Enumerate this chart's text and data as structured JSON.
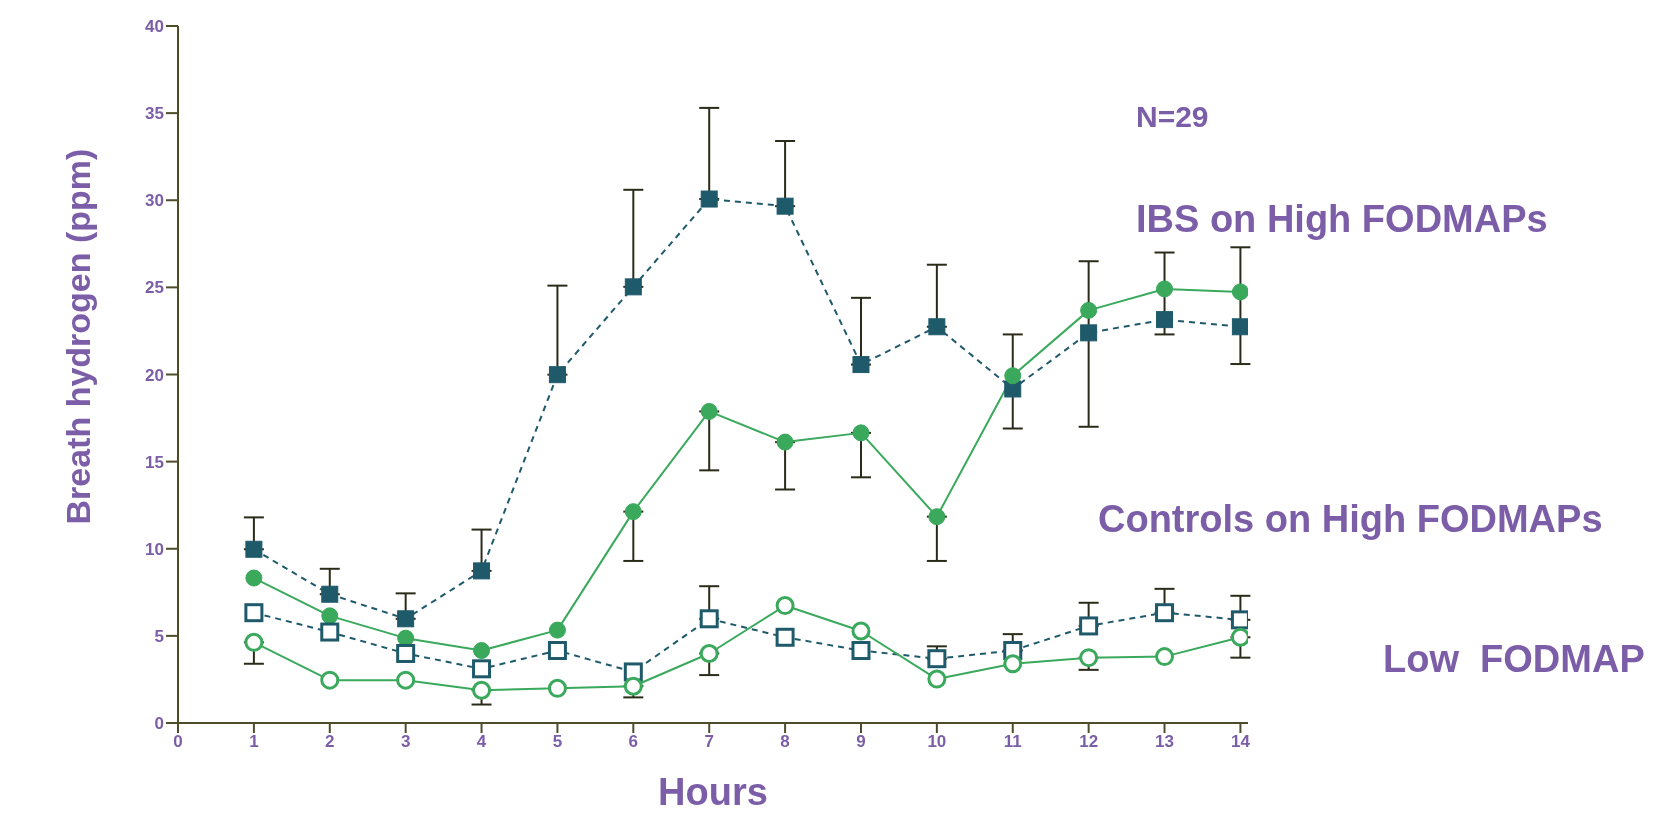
{
  "chart_data": {
    "type": "line",
    "xlabel": "Hours",
    "ylabel": "Breath hydrogen (ppm)",
    "x": [
      1,
      2,
      3,
      4,
      5,
      6,
      7,
      8,
      9,
      10,
      11,
      12,
      13,
      14
    ],
    "xlim": [
      0,
      14.1
    ],
    "xticks": [
      0,
      1,
      2,
      3,
      4,
      5,
      6,
      7,
      8,
      9,
      10,
      11,
      12,
      13,
      14
    ],
    "ylim": [
      0,
      40
    ],
    "yticks": [
      0,
      5,
      10,
      15,
      20,
      25,
      30,
      35,
      40
    ],
    "grid": false,
    "series": [
      {
        "color": "#1f5a6b",
        "marker": "square",
        "line_style": "dashed",
        "values": [
          9.97,
          7.39,
          5.98,
          8.73,
          19.99,
          25.03,
          30.07,
          29.66,
          20.57,
          22.74,
          19.17,
          22.39,
          23.15,
          22.74
        ],
        "errors": [
          [
            9.97,
            11.8
          ],
          [
            7.39,
            8.85
          ],
          [
            5.98,
            7.44
          ],
          [
            8.73,
            11.1
          ],
          [
            19.99,
            25.1
          ],
          [
            25.03,
            30.6
          ],
          [
            30.07,
            35.3
          ],
          [
            29.66,
            33.4
          ],
          [
            20.57,
            24.4
          ],
          [
            22.74,
            26.3
          ],
          [
            16.9,
            22.3
          ],
          [
            17.0,
            26.5
          ],
          [
            22.3,
            27.0
          ],
          [
            20.6,
            27.3
          ]
        ]
      },
      {
        "color": "#3aa95c",
        "marker": "circle",
        "line_style": "solid",
        "values": [
          8.32,
          6.15,
          4.87,
          4.16,
          5.33,
          12.13,
          17.88,
          16.12,
          16.65,
          11.84,
          19.93,
          23.68,
          24.91,
          24.74
        ],
        "errors": [
          null,
          null,
          null,
          null,
          null,
          [
            9.3,
            12.13
          ],
          [
            14.5,
            17.88
          ],
          [
            13.4,
            16.12
          ],
          [
            14.1,
            16.65
          ],
          [
            9.3,
            11.84
          ],
          null,
          null,
          null,
          null
        ]
      },
      {
        "color": "#1f5a6b",
        "marker": "square",
        "line_style": "dashed",
        "values": [
          6.33,
          5.22,
          3.99,
          3.11,
          4.16,
          2.93,
          5.98,
          4.92,
          4.16,
          3.69,
          4.16,
          5.57,
          6.33,
          5.92
        ],
        "errors": [
          null,
          null,
          null,
          null,
          null,
          null,
          [
            5.98,
            7.85
          ],
          null,
          null,
          [
            3.69,
            4.4
          ],
          [
            4.16,
            5.1
          ],
          [
            5.57,
            6.9
          ],
          [
            6.33,
            7.7
          ],
          [
            5.92,
            7.3
          ]
        ]
      },
      {
        "color": "#3aa95c",
        "marker": "circle",
        "line_style": "solid",
        "values": [
          4.63,
          2.46,
          2.46,
          1.88,
          1.99,
          2.11,
          3.99,
          6.74,
          5.28,
          2.52,
          3.4,
          3.75,
          3.81,
          4.92
        ],
        "errors": [
          [
            3.4,
            4.63
          ],
          null,
          null,
          [
            1.06,
            1.88
          ],
          null,
          [
            1.47,
            2.11
          ],
          [
            2.75,
            3.99
          ],
          null,
          null,
          null,
          null,
          [
            3.05,
            3.75
          ],
          null,
          [
            3.75,
            4.92
          ]
        ]
      }
    ],
    "annotations": [
      "N=29",
      "IBS on High FODMAPs",
      "Controls on High FODMAPs",
      "Low  FODMAP"
    ]
  }
}
